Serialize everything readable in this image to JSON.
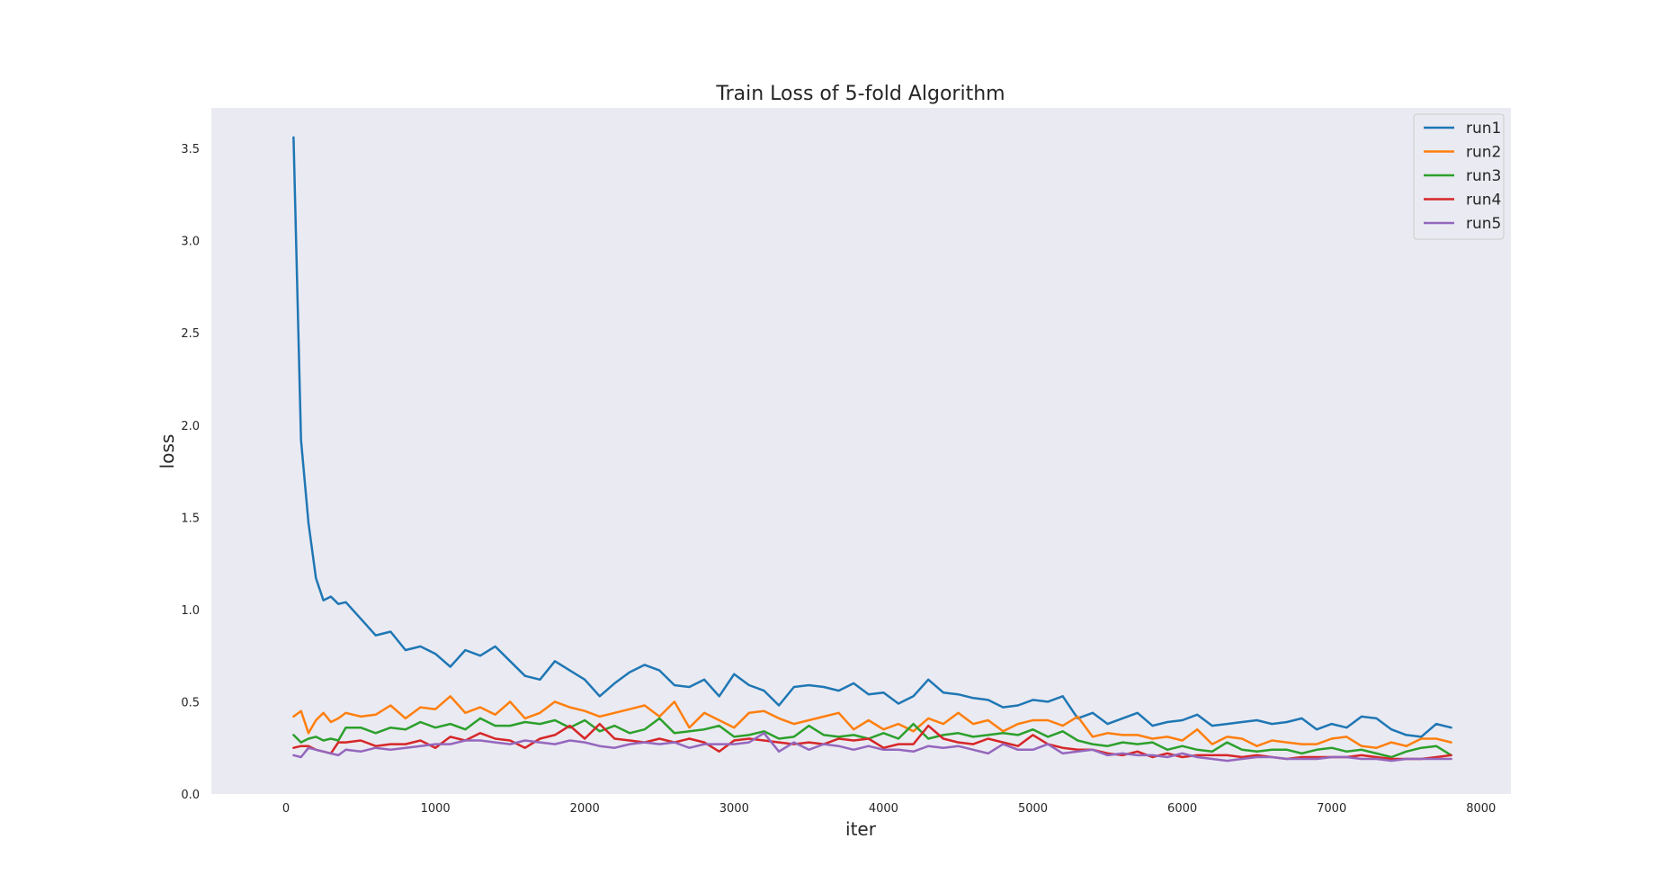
{
  "chart_data": {
    "type": "line",
    "title": "Train Loss of 5-fold Algorithm",
    "xlabel": "iter",
    "ylabel": "loss",
    "xlim": [
      -500,
      8200
    ],
    "ylim": [
      0.0,
      3.72
    ],
    "xticks": [
      0,
      1000,
      2000,
      3000,
      4000,
      5000,
      6000,
      7000,
      8000
    ],
    "yticks": [
      0.0,
      0.5,
      1.0,
      1.5,
      2.0,
      2.5,
      3.0,
      3.5
    ],
    "grid": false,
    "legend_position": "top-right",
    "background": "#eaeaf2",
    "x": [
      50,
      100,
      150,
      200,
      250,
      300,
      350,
      400,
      500,
      600,
      700,
      800,
      900,
      1000,
      1100,
      1200,
      1300,
      1400,
      1500,
      1600,
      1700,
      1800,
      1900,
      2000,
      2100,
      2200,
      2300,
      2400,
      2500,
      2600,
      2700,
      2800,
      2900,
      3000,
      3100,
      3200,
      3300,
      3400,
      3500,
      3600,
      3700,
      3800,
      3900,
      4000,
      4100,
      4200,
      4300,
      4400,
      4500,
      4600,
      4700,
      4800,
      4900,
      5000,
      5100,
      5200,
      5300,
      5400,
      5500,
      5600,
      5700,
      5800,
      5900,
      6000,
      6100,
      6200,
      6300,
      6400,
      6500,
      6600,
      6700,
      6800,
      6900,
      7000,
      7100,
      7200,
      7300,
      7400,
      7500,
      7600,
      7700,
      7800
    ],
    "series": [
      {
        "name": "run1",
        "color": "#1f77b4",
        "values": [
          3.56,
          1.92,
          1.47,
          1.17,
          1.05,
          1.07,
          1.03,
          1.04,
          0.95,
          0.86,
          0.88,
          0.78,
          0.8,
          0.76,
          0.69,
          0.78,
          0.75,
          0.8,
          0.72,
          0.64,
          0.62,
          0.72,
          0.67,
          0.62,
          0.53,
          0.6,
          0.66,
          0.7,
          0.67,
          0.59,
          0.58,
          0.62,
          0.53,
          0.65,
          0.59,
          0.56,
          0.48,
          0.58,
          0.59,
          0.58,
          0.56,
          0.6,
          0.54,
          0.55,
          0.49,
          0.53,
          0.62,
          0.55,
          0.54,
          0.52,
          0.51,
          0.47,
          0.48,
          0.51,
          0.5,
          0.53,
          0.41,
          0.44,
          0.38,
          0.41,
          0.44,
          0.37,
          0.39,
          0.4,
          0.43,
          0.37,
          0.38,
          0.39,
          0.4,
          0.38,
          0.39,
          0.41,
          0.35,
          0.38,
          0.36,
          0.42,
          0.41,
          0.35,
          0.32,
          0.31,
          0.38,
          0.36
        ]
      },
      {
        "name": "run2",
        "color": "#ff7f0e",
        "values": [
          0.42,
          0.45,
          0.33,
          0.4,
          0.44,
          0.39,
          0.41,
          0.44,
          0.42,
          0.43,
          0.48,
          0.41,
          0.47,
          0.46,
          0.53,
          0.44,
          0.47,
          0.43,
          0.5,
          0.41,
          0.44,
          0.5,
          0.47,
          0.45,
          0.42,
          0.44,
          0.46,
          0.48,
          0.42,
          0.5,
          0.36,
          0.44,
          0.4,
          0.36,
          0.44,
          0.45,
          0.41,
          0.38,
          0.4,
          0.42,
          0.44,
          0.35,
          0.4,
          0.35,
          0.38,
          0.34,
          0.41,
          0.38,
          0.44,
          0.38,
          0.4,
          0.34,
          0.38,
          0.4,
          0.4,
          0.37,
          0.42,
          0.31,
          0.33,
          0.32,
          0.32,
          0.3,
          0.31,
          0.29,
          0.35,
          0.27,
          0.31,
          0.3,
          0.26,
          0.29,
          0.28,
          0.27,
          0.27,
          0.3,
          0.31,
          0.26,
          0.25,
          0.28,
          0.26,
          0.3,
          0.3,
          0.28
        ]
      },
      {
        "name": "run3",
        "color": "#2ca02c",
        "values": [
          0.32,
          0.28,
          0.3,
          0.31,
          0.29,
          0.3,
          0.29,
          0.36,
          0.36,
          0.33,
          0.36,
          0.35,
          0.39,
          0.36,
          0.38,
          0.35,
          0.41,
          0.37,
          0.37,
          0.39,
          0.38,
          0.4,
          0.36,
          0.4,
          0.34,
          0.37,
          0.33,
          0.35,
          0.41,
          0.33,
          0.34,
          0.35,
          0.37,
          0.31,
          0.32,
          0.34,
          0.3,
          0.31,
          0.37,
          0.32,
          0.31,
          0.32,
          0.3,
          0.33,
          0.3,
          0.38,
          0.3,
          0.32,
          0.33,
          0.31,
          0.32,
          0.33,
          0.32,
          0.35,
          0.31,
          0.34,
          0.29,
          0.27,
          0.26,
          0.28,
          0.27,
          0.28,
          0.24,
          0.26,
          0.24,
          0.23,
          0.28,
          0.24,
          0.23,
          0.24,
          0.24,
          0.22,
          0.24,
          0.25,
          0.23,
          0.24,
          0.22,
          0.2,
          0.23,
          0.25,
          0.26,
          0.21
        ]
      },
      {
        "name": "run4",
        "color": "#d62728",
        "values": [
          0.25,
          0.26,
          0.26,
          0.24,
          0.23,
          0.22,
          0.28,
          0.28,
          0.29,
          0.26,
          0.27,
          0.27,
          0.29,
          0.25,
          0.31,
          0.29,
          0.33,
          0.3,
          0.29,
          0.25,
          0.3,
          0.32,
          0.37,
          0.3,
          0.38,
          0.3,
          0.29,
          0.28,
          0.3,
          0.28,
          0.3,
          0.28,
          0.23,
          0.29,
          0.3,
          0.29,
          0.28,
          0.27,
          0.28,
          0.27,
          0.3,
          0.29,
          0.3,
          0.25,
          0.27,
          0.27,
          0.37,
          0.3,
          0.28,
          0.27,
          0.3,
          0.28,
          0.26,
          0.32,
          0.27,
          0.25,
          0.24,
          0.24,
          0.22,
          0.21,
          0.23,
          0.2,
          0.22,
          0.2,
          0.21,
          0.21,
          0.21,
          0.2,
          0.21,
          0.2,
          0.19,
          0.2,
          0.2,
          0.2,
          0.2,
          0.21,
          0.2,
          0.19,
          0.19,
          0.19,
          0.2,
          0.21
        ]
      },
      {
        "name": "run5",
        "color": "#9467bd",
        "values": [
          0.21,
          0.2,
          0.25,
          0.24,
          0.23,
          0.22,
          0.21,
          0.24,
          0.23,
          0.25,
          0.24,
          0.25,
          0.26,
          0.27,
          0.27,
          0.29,
          0.29,
          0.28,
          0.27,
          0.29,
          0.28,
          0.27,
          0.29,
          0.28,
          0.26,
          0.25,
          0.27,
          0.28,
          0.27,
          0.28,
          0.25,
          0.27,
          0.27,
          0.27,
          0.28,
          0.33,
          0.23,
          0.28,
          0.24,
          0.27,
          0.26,
          0.24,
          0.26,
          0.24,
          0.24,
          0.23,
          0.26,
          0.25,
          0.26,
          0.24,
          0.22,
          0.27,
          0.24,
          0.24,
          0.27,
          0.22,
          0.23,
          0.24,
          0.21,
          0.22,
          0.21,
          0.21,
          0.2,
          0.22,
          0.2,
          0.19,
          0.18,
          0.19,
          0.2,
          0.2,
          0.19,
          0.19,
          0.19,
          0.2,
          0.2,
          0.19,
          0.19,
          0.18,
          0.19,
          0.19,
          0.19,
          0.19
        ]
      }
    ]
  }
}
